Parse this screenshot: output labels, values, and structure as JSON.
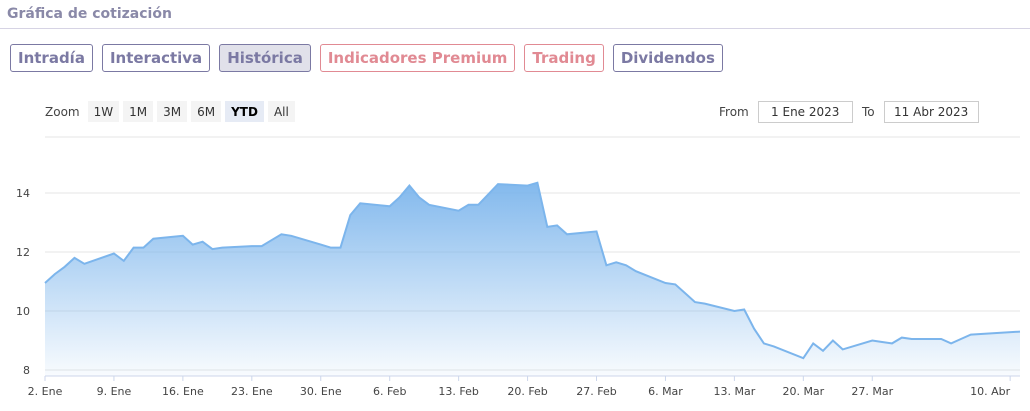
{
  "header": {
    "title": "Gráfica de cotización"
  },
  "tabs": [
    {
      "label": "Intradía",
      "active": false,
      "premium": false
    },
    {
      "label": "Interactiva",
      "active": false,
      "premium": false
    },
    {
      "label": "Histórica",
      "active": true,
      "premium": false
    },
    {
      "label": "Indicadores Premium",
      "active": false,
      "premium": true
    },
    {
      "label": "Trading",
      "active": false,
      "premium": true
    },
    {
      "label": "Dividendos",
      "active": false,
      "premium": false
    }
  ],
  "zoom": {
    "label": "Zoom",
    "options": [
      "1W",
      "1M",
      "3M",
      "6M",
      "YTD",
      "All"
    ],
    "selected": "YTD"
  },
  "range": {
    "from_label": "From",
    "from_value": "1 Ene 2023",
    "to_label": "To",
    "to_value": "11 Abr 2023"
  },
  "colors": {
    "series_line": "#7cb5ec",
    "tab_border": "#7b79a3",
    "premium": "#e18a93"
  },
  "chart_data": {
    "type": "area",
    "xlabel": "",
    "ylabel": "",
    "ylim": [
      8,
      15
    ],
    "yticks": [
      8,
      10,
      12,
      14
    ],
    "grid": true,
    "x_tick_labels": [
      "2. Ene",
      "9. Ene",
      "16. Ene",
      "23. Ene",
      "30. Ene",
      "6. Feb",
      "13. Feb",
      "20. Feb",
      "27. Feb",
      "6. Mar",
      "13. Mar",
      "20. Mar",
      "27. Mar",
      "10. Abr"
    ],
    "series": [
      {
        "x": [
          "2023-01-02",
          "2023-01-03",
          "2023-01-04",
          "2023-01-05",
          "2023-01-06",
          "2023-01-09",
          "2023-01-10",
          "2023-01-11",
          "2023-01-12",
          "2023-01-13",
          "2023-01-16",
          "2023-01-17",
          "2023-01-18",
          "2023-01-19",
          "2023-01-20",
          "2023-01-23",
          "2023-01-24",
          "2023-01-25",
          "2023-01-26",
          "2023-01-27",
          "2023-01-30",
          "2023-01-31",
          "2023-02-01",
          "2023-02-02",
          "2023-02-03",
          "2023-02-06",
          "2023-02-07",
          "2023-02-08",
          "2023-02-09",
          "2023-02-10",
          "2023-02-13",
          "2023-02-14",
          "2023-02-15",
          "2023-02-16",
          "2023-02-17",
          "2023-02-20",
          "2023-02-21",
          "2023-02-22",
          "2023-02-23",
          "2023-02-24",
          "2023-02-27",
          "2023-02-28",
          "2023-03-01",
          "2023-03-02",
          "2023-03-03",
          "2023-03-06",
          "2023-03-07",
          "2023-03-08",
          "2023-03-09",
          "2023-03-10",
          "2023-03-13",
          "2023-03-14",
          "2023-03-15",
          "2023-03-16",
          "2023-03-17",
          "2023-03-20",
          "2023-03-21",
          "2023-03-22",
          "2023-03-23",
          "2023-03-24",
          "2023-03-27",
          "2023-03-28",
          "2023-03-29",
          "2023-03-30",
          "2023-03-31",
          "2023-04-03",
          "2023-04-04",
          "2023-04-05",
          "2023-04-06",
          "2023-04-11"
        ],
        "values": [
          10.95,
          11.25,
          11.5,
          11.8,
          11.6,
          11.95,
          11.7,
          12.15,
          12.15,
          12.45,
          12.55,
          12.25,
          12.35,
          12.1,
          12.15,
          12.2,
          12.2,
          12.4,
          12.6,
          12.55,
          12.25,
          12.15,
          12.15,
          13.25,
          13.65,
          13.55,
          13.85,
          14.25,
          13.85,
          13.6,
          13.4,
          13.6,
          13.6,
          13.95,
          14.3,
          14.25,
          14.35,
          12.85,
          12.9,
          12.6,
          12.7,
          11.55,
          11.65,
          11.55,
          11.35,
          10.95,
          10.9,
          10.6,
          10.3,
          10.25,
          10.0,
          10.05,
          9.4,
          8.9,
          8.8,
          8.4,
          8.9,
          8.65,
          9.0,
          8.7,
          9.0,
          8.95,
          8.9,
          9.1,
          9.05,
          9.05,
          8.9,
          9.05,
          9.2,
          9.3
        ]
      }
    ]
  }
}
